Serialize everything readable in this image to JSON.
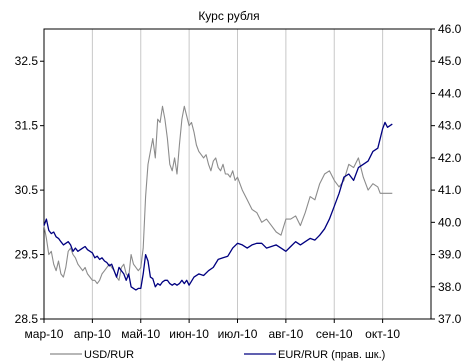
{
  "chart_data": {
    "type": "line",
    "title": "Курс рубля",
    "x_labels": [
      "мар-10",
      "апр-10",
      "май-10",
      "июн-10",
      "июл-10",
      "авг-10",
      "сен-10",
      "окт-10"
    ],
    "y_left": {
      "min": 28.5,
      "max": 33.0,
      "ticks": [
        "28.5",
        "29.5",
        "30.5",
        "31.5",
        "32.5"
      ]
    },
    "y_right": {
      "min": 37.0,
      "max": 46.0,
      "ticks": [
        "37.0",
        "38.0",
        "39.0",
        "40.0",
        "41.0",
        "42.0",
        "43.0",
        "44.0",
        "45.0",
        "46.0"
      ]
    },
    "grid": "vertical",
    "series": [
      {
        "name": "USD/RUR",
        "axis": "left",
        "color": "#8c8c8c",
        "x": [
          0,
          0.05,
          0.1,
          0.15,
          0.2,
          0.25,
          0.3,
          0.35,
          0.4,
          0.45,
          0.5,
          0.55,
          0.6,
          0.65,
          0.7,
          0.75,
          0.8,
          0.85,
          0.9,
          0.95,
          1.0,
          1.05,
          1.1,
          1.15,
          1.2,
          1.25,
          1.3,
          1.35,
          1.4,
          1.45,
          1.5,
          1.55,
          1.6,
          1.65,
          1.7,
          1.75,
          1.8,
          1.85,
          1.9,
          1.95,
          2.0,
          2.05,
          2.1,
          2.15,
          2.2,
          2.25,
          2.3,
          2.35,
          2.4,
          2.45,
          2.5,
          2.55,
          2.6,
          2.65,
          2.7,
          2.75,
          2.8,
          2.85,
          2.9,
          2.95,
          3.0,
          3.05,
          3.1,
          3.15,
          3.2,
          3.25,
          3.3,
          3.35,
          3.4,
          3.45,
          3.5,
          3.55,
          3.6,
          3.65,
          3.7,
          3.75,
          3.8,
          3.85,
          3.9,
          3.95,
          4.0,
          4.1,
          4.2,
          4.3,
          4.4,
          4.5,
          4.6,
          4.7,
          4.8,
          4.9,
          5.0,
          5.1,
          5.2,
          5.3,
          5.4,
          5.5,
          5.6,
          5.7,
          5.8,
          5.9,
          6.0,
          6.1,
          6.2,
          6.3,
          6.4,
          6.5,
          6.6,
          6.7,
          6.8,
          6.9,
          6.95,
          7.0,
          7.1,
          7.2
        ],
        "values": [
          29.95,
          29.75,
          29.5,
          29.55,
          29.35,
          29.25,
          29.4,
          29.2,
          29.15,
          29.3,
          29.55,
          29.6,
          29.5,
          29.45,
          29.35,
          29.3,
          29.25,
          29.3,
          29.2,
          29.15,
          29.1,
          29.1,
          29.05,
          29.1,
          29.2,
          29.25,
          29.3,
          29.35,
          29.3,
          29.25,
          29.15,
          29.1,
          29.3,
          29.35,
          29.2,
          29.15,
          29.5,
          29.35,
          29.3,
          29.25,
          29.3,
          29.6,
          30.4,
          30.9,
          31.1,
          31.3,
          31.0,
          31.6,
          31.55,
          31.8,
          31.6,
          31.3,
          30.9,
          30.8,
          31.0,
          30.75,
          31.2,
          31.6,
          31.8,
          31.65,
          31.5,
          31.55,
          31.4,
          31.2,
          31.1,
          31.05,
          31.0,
          31.05,
          30.9,
          30.8,
          30.95,
          31.0,
          30.85,
          30.8,
          30.9,
          30.75,
          30.75,
          30.7,
          30.8,
          30.65,
          30.7,
          30.5,
          30.35,
          30.2,
          30.15,
          30.0,
          30.05,
          29.95,
          29.85,
          29.8,
          30.05,
          30.05,
          30.1,
          29.95,
          30.15,
          30.4,
          30.35,
          30.6,
          30.75,
          30.8,
          30.65,
          30.55,
          30.65,
          30.9,
          30.85,
          31.0,
          30.7,
          30.5,
          30.6,
          30.55,
          30.45,
          30.45,
          30.45,
          30.45
        ]
      },
      {
        "name": "EUR/RUR (прав. шк.)",
        "axis": "right",
        "color": "#000080",
        "x": [
          0,
          0.05,
          0.1,
          0.15,
          0.2,
          0.25,
          0.3,
          0.35,
          0.4,
          0.45,
          0.5,
          0.55,
          0.6,
          0.65,
          0.7,
          0.75,
          0.8,
          0.85,
          0.9,
          0.95,
          1.0,
          1.05,
          1.1,
          1.15,
          1.2,
          1.25,
          1.3,
          1.35,
          1.4,
          1.45,
          1.5,
          1.55,
          1.6,
          1.65,
          1.7,
          1.75,
          1.8,
          1.85,
          1.9,
          1.95,
          2.0,
          2.05,
          2.1,
          2.15,
          2.2,
          2.25,
          2.3,
          2.35,
          2.4,
          2.45,
          2.5,
          2.55,
          2.6,
          2.65,
          2.7,
          2.75,
          2.8,
          2.85,
          2.9,
          2.95,
          3.0,
          3.1,
          3.2,
          3.3,
          3.4,
          3.5,
          3.6,
          3.7,
          3.8,
          3.9,
          4.0,
          4.1,
          4.2,
          4.3,
          4.4,
          4.5,
          4.6,
          4.7,
          4.8,
          4.9,
          5.0,
          5.1,
          5.2,
          5.3,
          5.4,
          5.5,
          5.6,
          5.7,
          5.8,
          5.9,
          6.0,
          6.1,
          6.2,
          6.3,
          6.4,
          6.5,
          6.6,
          6.7,
          6.8,
          6.9,
          7.0,
          7.05,
          7.1,
          7.2
        ],
        "values": [
          39.9,
          40.1,
          39.75,
          39.65,
          39.7,
          39.55,
          39.5,
          39.4,
          39.3,
          39.35,
          39.4,
          39.3,
          39.1,
          39.2,
          39.1,
          39.15,
          39.2,
          39.25,
          39.15,
          39.1,
          39.05,
          38.9,
          38.95,
          38.85,
          38.9,
          38.8,
          38.75,
          38.65,
          38.7,
          38.5,
          38.3,
          38.6,
          38.5,
          38.4,
          38.2,
          38.4,
          38.0,
          37.95,
          37.9,
          37.95,
          37.95,
          38.4,
          39.0,
          38.8,
          38.3,
          38.25,
          38.0,
          38.1,
          38.05,
          38.15,
          38.2,
          38.2,
          38.1,
          38.05,
          38.1,
          38.05,
          38.1,
          38.2,
          38.1,
          38.2,
          38.05,
          38.3,
          38.4,
          38.35,
          38.5,
          38.6,
          38.85,
          38.9,
          38.95,
          39.2,
          39.35,
          39.3,
          39.2,
          39.3,
          39.35,
          39.35,
          39.2,
          39.25,
          39.3,
          39.2,
          39.1,
          39.25,
          39.4,
          39.3,
          39.4,
          39.5,
          39.45,
          39.6,
          39.8,
          40.1,
          40.5,
          40.9,
          41.4,
          41.5,
          41.3,
          41.7,
          41.8,
          41.9,
          42.2,
          42.3,
          42.9,
          43.1,
          42.95,
          43.05
        ]
      }
    ],
    "legend": {
      "position": "bottom"
    }
  }
}
